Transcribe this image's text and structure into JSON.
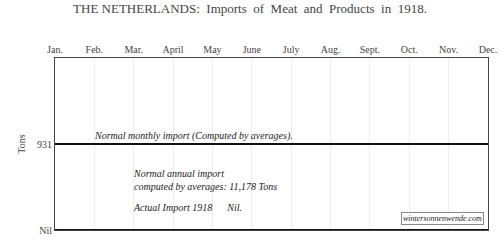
{
  "chart_data": {
    "type": "line",
    "title": "THE NETHERLANDS:  Imports  of  Meat  and  Products  in  1918.",
    "ylabel": "Tons",
    "categories": [
      "Jan.",
      "Feb.",
      "Mar.",
      "April",
      "May",
      "June",
      "July",
      "Aug.",
      "Sept.",
      "Oct.",
      "Nov.",
      "Dec."
    ],
    "series": [
      {
        "color": "#111111",
        "values": [
          931,
          931,
          931,
          931,
          931,
          931,
          931,
          931,
          931,
          931,
          931,
          931
        ]
      },
      {
        "color": "#111111",
        "values": [
          0,
          0,
          0,
          0,
          0,
          0,
          0,
          0,
          0,
          0,
          0,
          0
        ]
      }
    ],
    "ylim": [
      0,
      1862
    ],
    "yticks": [
      {
        "value": 0,
        "label": "Nil"
      },
      931
    ],
    "grid": true,
    "annotations": [
      "Normal monthly import (Computed by averages).",
      "Normal annual import\ncomputed by averages: 11,178 Tons",
      "Actual Import 1918      Nil.",
      "wintersonnenwende.com"
    ]
  }
}
